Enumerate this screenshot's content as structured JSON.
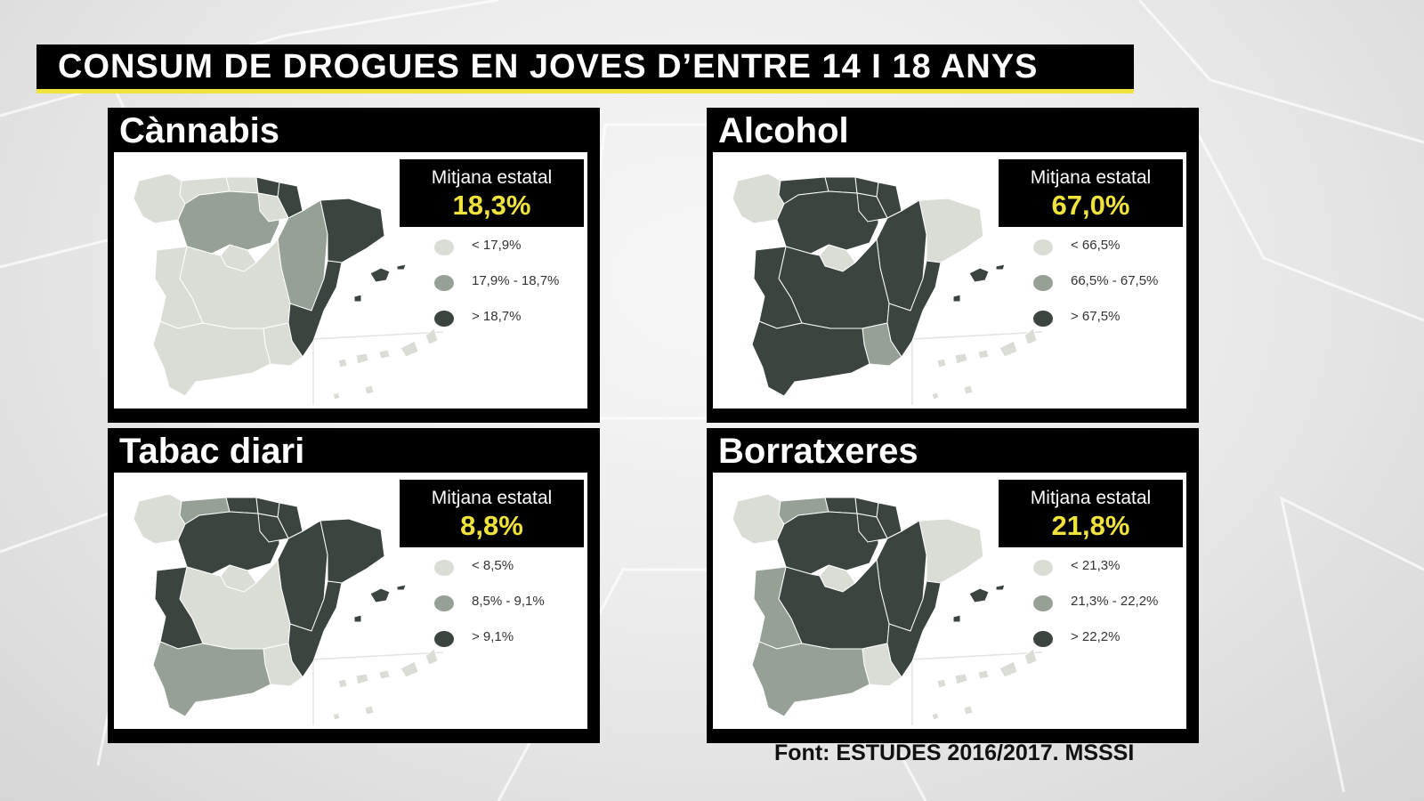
{
  "title": "CONSUM DE DROGUES EN JOVES D’ENTRE 14 I 18 ANYS",
  "source": "Font: ESTUDES 2016/2017. MSSSI",
  "colors": {
    "low": "#d9ddd6",
    "mid": "#96a096",
    "high": "#3b443e",
    "accent": "#f0e23c"
  },
  "average_label": "Mitjana estatal",
  "panels": [
    {
      "name": "Cànnabis",
      "average": "18,3%",
      "legend": [
        "< 17,9%",
        "17,9% - 18,7%",
        "> 18,7%"
      ],
      "regions": {
        "galicia": "low",
        "asturias": "low",
        "cantabria": "low",
        "pais_vasco": "high",
        "navarra": "high",
        "castilla_leon": "mid",
        "la_rioja": "low",
        "aragon": "mid",
        "catalunya": "high",
        "madrid": "low",
        "castilla_mancha": "low",
        "extremadura": "low",
        "valencia": "high",
        "murcia": "low",
        "andalucia": "low",
        "baleares": "high",
        "canarias": "low"
      }
    },
    {
      "name": "Alcohol",
      "average": "67,0%",
      "legend": [
        "< 66,5%",
        "66,5% - 67,5%",
        "> 67,5%"
      ],
      "regions": {
        "galicia": "low",
        "asturias": "high",
        "cantabria": "high",
        "pais_vasco": "high",
        "navarra": "high",
        "castilla_leon": "high",
        "la_rioja": "high",
        "aragon": "high",
        "catalunya": "low",
        "madrid": "low",
        "castilla_mancha": "high",
        "extremadura": "high",
        "valencia": "high",
        "murcia": "mid",
        "andalucia": "high",
        "baleares": "high",
        "canarias": "low"
      }
    },
    {
      "name": "Tabac diari",
      "average": "8,8%",
      "legend": [
        "< 8,5%",
        "8,5% - 9,1%",
        "> 9,1%"
      ],
      "regions": {
        "galicia": "low",
        "asturias": "mid",
        "cantabria": "high",
        "pais_vasco": "high",
        "navarra": "high",
        "castilla_leon": "high",
        "la_rioja": "high",
        "aragon": "high",
        "catalunya": "high",
        "madrid": "low",
        "castilla_mancha": "low",
        "extremadura": "high",
        "valencia": "high",
        "murcia": "low",
        "andalucia": "mid",
        "baleares": "high",
        "canarias": "low"
      }
    },
    {
      "name": "Borratxeres",
      "average": "21,8%",
      "legend": [
        "< 21,3%",
        "21,3% - 22,2%",
        "> 22,2%"
      ],
      "regions": {
        "galicia": "low",
        "asturias": "mid",
        "cantabria": "high",
        "pais_vasco": "high",
        "navarra": "high",
        "castilla_leon": "high",
        "la_rioja": "high",
        "aragon": "high",
        "catalunya": "low",
        "madrid": "low",
        "castilla_mancha": "high",
        "extremadura": "mid",
        "valencia": "high",
        "murcia": "low",
        "andalucia": "mid",
        "baleares": "high",
        "canarias": "low"
      }
    }
  ]
}
